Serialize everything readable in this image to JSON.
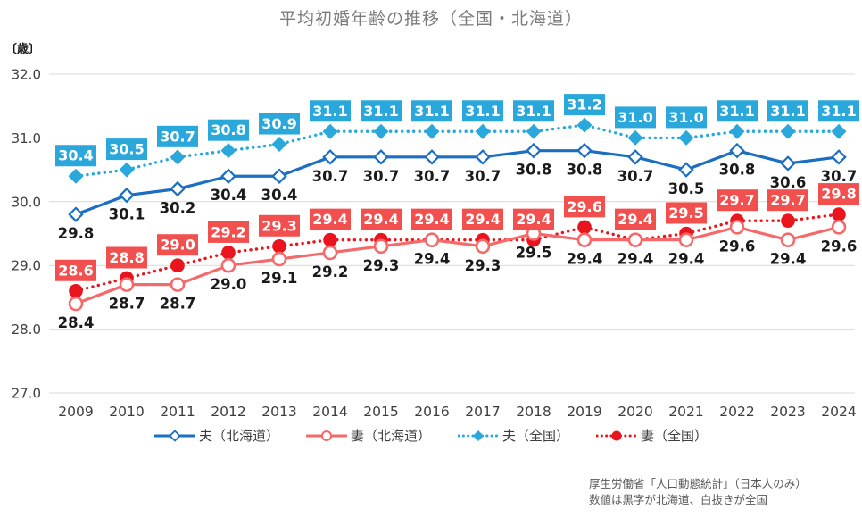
{
  "title": "平均初婚年齢の推移（全国・北海道）",
  "y_unit": "〔歳〕",
  "note": {
    "line1": "厚生労働省「人口動態統計」（日本人のみ）",
    "line2": "数値は黒字が北海道、白抜きが全国"
  },
  "chart_data": {
    "type": "line",
    "title": "平均初婚年齢の推移（全国・北海道）",
    "xlabel": "",
    "ylabel": "歳",
    "ylim": [
      27.0,
      32.0
    ],
    "ytick_step": 1.0,
    "grid": true,
    "legend_position": "bottom",
    "categories": [
      "2009",
      "2010",
      "2011",
      "2012",
      "2013",
      "2014",
      "2015",
      "2016",
      "2017",
      "2018",
      "2019",
      "2020",
      "2021",
      "2022",
      "2023",
      "2024"
    ],
    "series": [
      {
        "name": "夫（北海道）",
        "values": [
          29.8,
          30.1,
          30.2,
          30.4,
          30.4,
          30.7,
          30.7,
          30.7,
          30.7,
          30.8,
          30.8,
          30.7,
          30.5,
          30.8,
          30.6,
          30.7
        ],
        "color": "#1b6ec2",
        "line": "solid",
        "marker": "diamond-open",
        "label_style": "plain",
        "label_color": "#1a1a1a"
      },
      {
        "name": "妻（北海道）",
        "values": [
          28.4,
          28.7,
          28.7,
          29.0,
          29.1,
          29.2,
          29.3,
          29.4,
          29.3,
          29.5,
          29.4,
          29.4,
          29.4,
          29.6,
          29.4,
          29.6
        ],
        "color": "#f5696a",
        "line": "solid",
        "marker": "circle-open",
        "label_style": "plain",
        "label_color": "#1a1a1a"
      },
      {
        "name": "夫（全国）",
        "values": [
          30.4,
          30.5,
          30.7,
          30.8,
          30.9,
          31.1,
          31.1,
          31.1,
          31.1,
          31.1,
          31.2,
          31.0,
          31.0,
          31.1,
          31.1,
          31.1
        ],
        "color": "#2aa7db",
        "line": "dotted",
        "marker": "diamond-filled",
        "label_style": "box",
        "label_bg": "#2aa7db",
        "label_color": "#ffffff"
      },
      {
        "name": "妻（全国）",
        "values": [
          28.6,
          28.8,
          29.0,
          29.2,
          29.3,
          29.4,
          29.4,
          29.4,
          29.4,
          29.4,
          29.6,
          29.4,
          29.5,
          29.7,
          29.7,
          29.8
        ],
        "color": "#e9141d",
        "line": "dotted",
        "marker": "circle-filled",
        "label_style": "box",
        "label_bg": "#f24f4f",
        "label_color": "#ffffff"
      }
    ],
    "colors": {
      "grid": "#d9d9d9",
      "axis_text": "#3d3d3d",
      "plain_label": "#1a1a1a"
    }
  }
}
